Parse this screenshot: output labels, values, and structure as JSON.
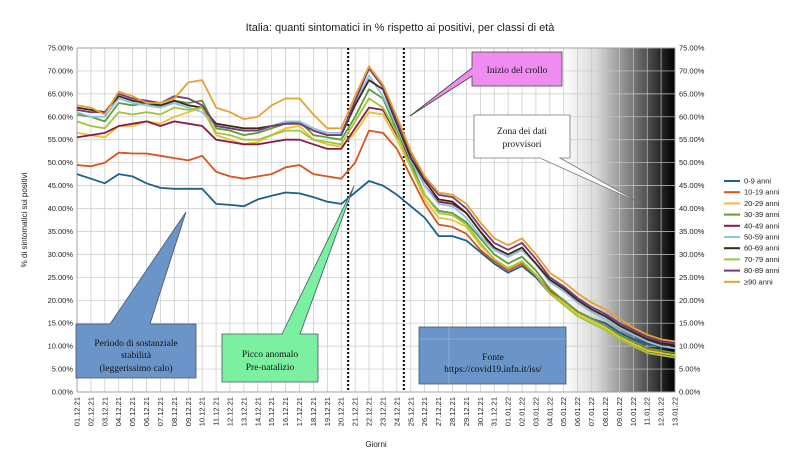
{
  "chart_data": {
    "type": "line",
    "title": "Italia: quanti sintomatici in % rispetto ai positivi, per classi di età",
    "xlabel": "Giorni",
    "ylabel": "% di sintomatici sui positivi",
    "ylim": [
      0,
      75
    ],
    "y_ticks": [
      "0.00%",
      "5.00%",
      "10.00%",
      "15.00%",
      "20.00%",
      "25.00%",
      "30.00%",
      "35.00%",
      "40.00%",
      "45.00%",
      "50.00%",
      "55.00%",
      "60.00%",
      "65.00%",
      "70.00%",
      "75.00%"
    ],
    "categories": [
      "01.12.21",
      "02.12.21",
      "03.12.21",
      "04.12.21",
      "05.12.21",
      "06.12.21",
      "07.12.21",
      "08.12.21",
      "09.12.21",
      "10.12.21",
      "11.12.21",
      "12.12.21",
      "13.12.21",
      "14.12.21",
      "15.12.21",
      "16.12.21",
      "17.12.21",
      "18.12.21",
      "19.12.21",
      "20.12.21",
      "21.12.21",
      "22.12.21",
      "23.12.21",
      "24.12.21",
      "25.12.21",
      "26.12.21",
      "27.12.21",
      "28.12.21",
      "29.12.21",
      "30.12.21",
      "31.12.21",
      "01.01.22",
      "02.01.22",
      "03.01.22",
      "04.01.22",
      "05.01.22",
      "06.01.22",
      "07.01.22",
      "08.01.22",
      "09.01.22",
      "10.01.22",
      "11.01.22",
      "12.01.22",
      "13.01.22"
    ],
    "series": [
      {
        "name": "0-9 anni",
        "color": "#1f5f8b",
        "values": [
          47.5,
          46.5,
          45.5,
          47.5,
          47,
          45.5,
          44.5,
          44.3,
          44.3,
          44.3,
          41,
          40.8,
          40.5,
          42,
          42.8,
          43.5,
          43.3,
          42.5,
          41.5,
          41,
          43.5,
          46,
          45,
          43,
          40.5,
          38,
          34,
          34,
          33,
          30.5,
          28,
          26,
          27.5,
          25,
          21.5,
          19.5,
          17.5,
          16,
          15,
          13,
          11.5,
          10.5,
          10,
          9.5
        ]
      },
      {
        "name": "10-19 anni",
        "color": "#d9531e",
        "values": [
          49.5,
          49.2,
          50,
          52.2,
          52,
          52,
          51.5,
          51,
          50.5,
          51.5,
          48,
          47,
          46.5,
          47,
          47.5,
          49,
          49.5,
          47.5,
          47,
          46.5,
          50,
          57,
          56.5,
          53,
          47,
          41,
          36.5,
          36,
          34.5,
          31,
          28.5,
          26.5,
          28,
          25.5,
          22,
          20,
          17.5,
          16,
          14.5,
          12.5,
          11,
          9.5,
          8.5,
          8
        ]
      },
      {
        "name": "20-29 anni",
        "color": "#e8c230",
        "values": [
          56.5,
          56,
          55.5,
          58,
          58,
          59,
          58.5,
          60,
          61,
          62,
          56,
          55,
          54,
          54.5,
          56,
          57.5,
          58,
          55,
          54,
          53.5,
          56.5,
          61,
          60.5,
          55,
          49,
          42,
          38,
          37.5,
          36,
          32,
          29,
          27,
          28.5,
          25.5,
          21.5,
          19.5,
          17,
          15.5,
          14,
          12,
          10.5,
          9,
          8.5,
          8
        ]
      },
      {
        "name": "30-39 anni",
        "color": "#5a9e3a",
        "values": [
          60.5,
          60,
          59,
          63,
          62.5,
          63,
          62,
          63.5,
          63,
          63.5,
          57.5,
          57,
          56,
          56.5,
          57.5,
          58.5,
          59,
          56,
          55.5,
          55,
          60,
          66,
          64,
          57,
          50,
          43,
          39.5,
          39,
          37,
          33.5,
          30,
          28,
          29.5,
          26.5,
          22.5,
          20,
          17.5,
          16,
          14.5,
          12.5,
          11,
          9.5,
          9,
          8.5
        ]
      },
      {
        "name": "40-49 anni",
        "color": "#8b1a4a",
        "values": [
          55.5,
          56,
          56.5,
          58,
          58.5,
          59,
          58,
          59,
          58.5,
          58,
          55,
          54.5,
          54,
          54,
          54.5,
          55,
          55,
          54,
          53,
          53,
          57.5,
          62,
          61.5,
          56,
          50.5,
          45,
          41.5,
          41,
          39,
          35,
          31,
          29.5,
          31,
          28,
          24,
          22,
          19.5,
          17.5,
          16,
          14,
          12.5,
          11,
          10,
          9.5
        ]
      },
      {
        "name": "50-59 anni",
        "color": "#8fc0e8",
        "values": [
          61,
          60,
          60,
          64,
          63,
          62.5,
          62,
          63,
          62,
          61,
          58,
          57.5,
          57,
          57,
          58,
          59,
          59,
          57.5,
          56.5,
          56.5,
          63,
          69,
          64.5,
          58,
          50.5,
          45,
          41,
          40.5,
          38,
          34,
          31,
          29.5,
          31,
          28,
          24,
          22,
          19.5,
          17.5,
          16,
          14,
          12.5,
          11,
          10,
          9.5
        ]
      },
      {
        "name": "60-69 anni",
        "color": "#3a2a10",
        "values": [
          62,
          61.5,
          61,
          64.5,
          63.5,
          63,
          62.5,
          63.5,
          62.5,
          62,
          58.5,
          58,
          57.5,
          57.5,
          58,
          58.5,
          58.5,
          57,
          56,
          56,
          62.5,
          68,
          66,
          58.5,
          51,
          46,
          42,
          41.5,
          39,
          35,
          31.5,
          30,
          31.5,
          28,
          24.5,
          22.5,
          20,
          18,
          16.5,
          14.5,
          13,
          11.5,
          10.5,
          10
        ]
      },
      {
        "name": "70-79 anni",
        "color": "#a5c23a",
        "values": [
          59,
          58,
          57.5,
          61,
          60.5,
          61,
          60.5,
          62,
          61.5,
          62,
          56.5,
          56,
          55,
          55,
          56,
          57,
          57,
          55,
          54.5,
          54,
          59,
          64,
          62,
          56.5,
          49,
          43,
          39,
          38.5,
          36.5,
          32.5,
          29,
          27,
          28.5,
          25.5,
          21.5,
          19,
          16.5,
          15,
          13.5,
          11.5,
          10,
          8.5,
          8,
          7.5
        ]
      },
      {
        "name": "80-89 anni",
        "color": "#7a3a7a",
        "values": [
          61.5,
          61,
          61,
          65,
          64,
          63.5,
          63,
          64.5,
          64,
          62.5,
          58,
          57.5,
          57,
          57,
          58,
          58.5,
          58.5,
          57,
          56,
          56,
          63.5,
          70.5,
          66.5,
          59,
          52,
          46.5,
          43,
          42.5,
          40,
          36,
          32.5,
          31,
          32.5,
          29,
          25,
          23,
          20.5,
          18.5,
          17,
          15,
          13.5,
          12,
          11,
          10.5
        ]
      },
      {
        "name": "≥90 anni",
        "color": "#e8a030",
        "values": [
          62.5,
          62,
          60.5,
          65.5,
          64.5,
          63,
          63,
          64,
          67.5,
          68,
          62,
          61,
          59.5,
          60,
          62.5,
          64,
          64,
          60.5,
          57.5,
          57.5,
          64.5,
          71,
          67,
          60,
          52.5,
          47,
          43.5,
          43,
          41,
          37,
          33.5,
          32,
          33.5,
          30,
          26,
          24,
          21.5,
          19.5,
          18,
          16,
          14,
          12.5,
          11.5,
          11
        ]
      }
    ],
    "vertical_markers": [
      "20.12.21",
      "24.12.21"
    ],
    "annotations": [
      {
        "id": "crollo",
        "text": "Inizio del crollo",
        "fill": "#f08cf0"
      },
      {
        "id": "provvisori",
        "lines": [
          "Zona dei dati",
          "provvisori"
        ],
        "fill": "#ffffff"
      },
      {
        "id": "stabilita",
        "lines": [
          "Periodo di sostanziale",
          "stabilità",
          "(leggerissimo calo)"
        ],
        "fill": "#6b95c8"
      },
      {
        "id": "picco",
        "lines": [
          "Picco anomalo",
          "Pre-natalizio"
        ],
        "fill": "#7af0a0"
      },
      {
        "id": "fonte",
        "lines": [
          "Fonte",
          "https://covid19.infn.it/iss/"
        ],
        "fill": "#6b95c8"
      }
    ]
  }
}
